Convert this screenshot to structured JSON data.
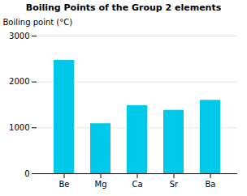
{
  "chart_data": {
    "type": "bar",
    "title": "Boiling Points of the Group 2 elements",
    "ylabel": "Boiling point (°C)",
    "categories": [
      "Be",
      "Mg",
      "Ca",
      "Sr",
      "Ba"
    ],
    "values": [
      2470,
      1090,
      1484,
      1382,
      1600
    ],
    "color": "#00C8E8",
    "ylim": [
      0,
      3000
    ],
    "yticks": [
      0,
      1000,
      2000,
      3000
    ],
    "grid": true
  }
}
